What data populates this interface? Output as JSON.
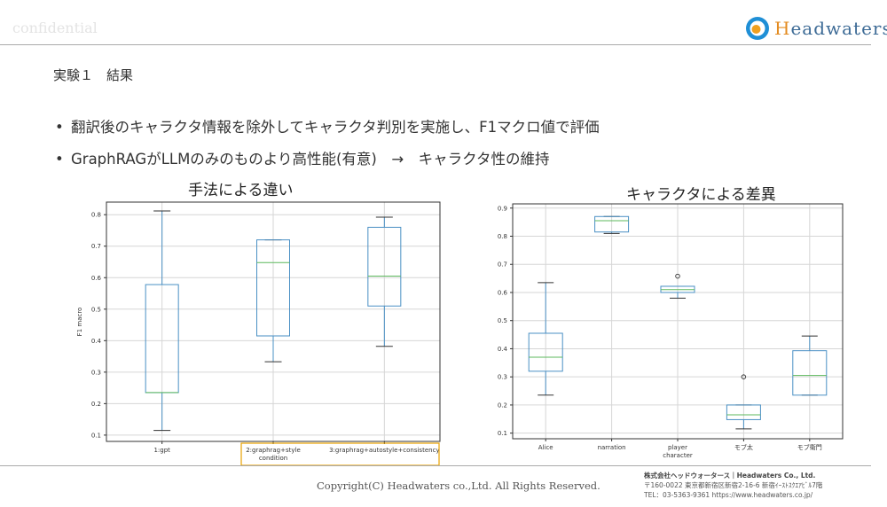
{
  "header": {
    "watermark": "confidential",
    "logo_text": "Headwaters"
  },
  "slide": {
    "title": "実験１　結果",
    "bullets": [
      "翻訳後のキャラクタ情報を除外してキャラクタ判別を実施し、F1マクロ値で評価",
      "GraphRAGがLLMのみのものより高性能(有意)　→　キャラクタ性の維持"
    ]
  },
  "chart_data": [
    {
      "type": "boxplot",
      "title": "手法による違い",
      "xlabel": "",
      "ylabel": "F1 macro",
      "ylim": [
        0.08,
        0.84
      ],
      "yticks": [
        "0.1",
        "0.2",
        "0.3",
        "0.4",
        "0.5",
        "0.6",
        "0.7",
        "0.8"
      ],
      "grid": true,
      "highlight_color": "#e8a200",
      "box_color": "#4a90c4",
      "median_color": "#5cb85c",
      "categories": [
        "1:gpt",
        "2:graphrag+style\ncondition",
        "3:graphrag+autostyle+consistency"
      ],
      "boxes": [
        {
          "min": 0.115,
          "q1": 0.235,
          "median": 0.235,
          "q3": 0.578,
          "max": 0.812,
          "outliers": []
        },
        {
          "min": 0.333,
          "q1": 0.415,
          "median": 0.648,
          "q3": 0.72,
          "max": 0.72,
          "outliers": []
        },
        {
          "min": 0.382,
          "q1": 0.51,
          "median": 0.605,
          "q3": 0.76,
          "max": 0.792,
          "outliers": []
        }
      ]
    },
    {
      "type": "boxplot",
      "title": "キャラクタによる差異",
      "xlabel": "",
      "ylabel": "",
      "ylim": [
        0.08,
        0.915
      ],
      "yticks": [
        "0.1",
        "0.2",
        "0.3",
        "0.4",
        "0.5",
        "0.6",
        "0.7",
        "0.8",
        "0.9"
      ],
      "grid": true,
      "box_color": "#4a90c4",
      "median_color": "#5cb85c",
      "categories": [
        "Alice",
        "narration",
        "player\ncharacter",
        "モブ太",
        "モブ衛門"
      ],
      "boxes": [
        {
          "min": 0.235,
          "q1": 0.32,
          "median": 0.37,
          "q3": 0.455,
          "max": 0.635,
          "outliers": []
        },
        {
          "min": 0.81,
          "q1": 0.815,
          "median": 0.855,
          "q3": 0.87,
          "max": 0.87,
          "outliers": []
        },
        {
          "min": 0.58,
          "q1": 0.6,
          "median": 0.61,
          "q3": 0.622,
          "max": 0.622,
          "outliers": [
            0.658
          ]
        },
        {
          "min": 0.115,
          "q1": 0.148,
          "median": 0.165,
          "q3": 0.2,
          "max": 0.2,
          "outliers": [
            0.3
          ]
        },
        {
          "min": 0.235,
          "q1": 0.235,
          "median": 0.305,
          "q3": 0.393,
          "max": 0.445,
          "outliers": []
        }
      ]
    }
  ],
  "footer": {
    "copyright": "Copyright(C)  Headwaters co.,Ltd. All Rights Reserved.",
    "company": "株式会社ヘッドウォータース｜Headwaters Co., Ltd.",
    "address": "〒160-0022 東京都新宿区新宿2-16-6 新宿ｲｰｽﾄｽｸｴｱﾋﾞﾙ7階",
    "tel": "TEL：03-5363-9361  https://www.headwaters.co.jp/"
  }
}
